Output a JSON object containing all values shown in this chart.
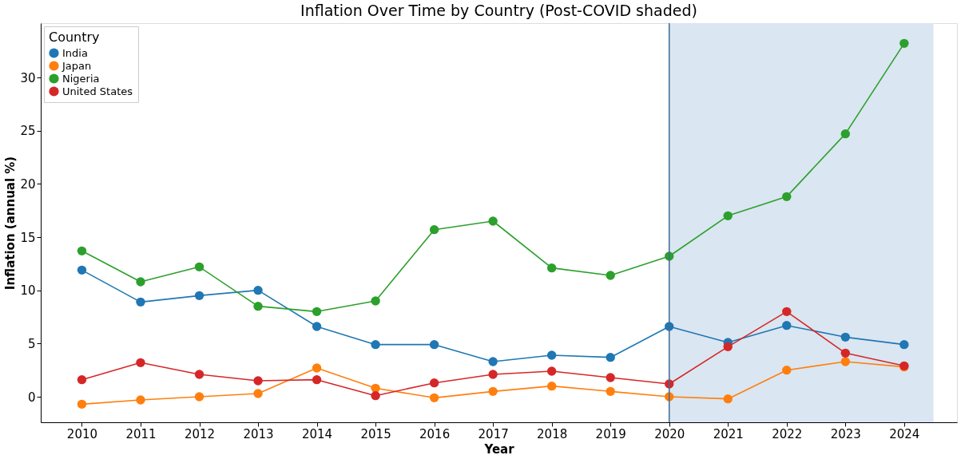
{
  "chart_data": {
    "type": "line",
    "title": "Inflation Over Time by Country (Post-COVID shaded)",
    "xlabel": "Year",
    "ylabel": "Inflation (annual %)",
    "legend_title": "Country",
    "x": [
      2010,
      2011,
      2012,
      2013,
      2014,
      2015,
      2016,
      2017,
      2018,
      2019,
      2020,
      2021,
      2022,
      2023,
      2024
    ],
    "series": [
      {
        "name": "India",
        "color": "#1f77b4",
        "values": [
          11.9,
          8.9,
          9.5,
          10.0,
          6.6,
          4.9,
          4.9,
          3.3,
          3.9,
          3.7,
          6.6,
          5.1,
          6.7,
          5.6,
          4.9
        ]
      },
      {
        "name": "Japan",
        "color": "#ff7f0e",
        "values": [
          -0.7,
          -0.3,
          0.0,
          0.3,
          2.7,
          0.8,
          -0.1,
          0.5,
          1.0,
          0.5,
          0.0,
          -0.2,
          2.5,
          3.3,
          2.8
        ]
      },
      {
        "name": "Nigeria",
        "color": "#2ca02c",
        "values": [
          13.7,
          10.8,
          12.2,
          8.5,
          8.0,
          9.0,
          15.7,
          16.5,
          12.1,
          11.4,
          13.2,
          17.0,
          18.8,
          24.7,
          33.2
        ]
      },
      {
        "name": "United States",
        "color": "#d62728",
        "values": [
          1.6,
          3.2,
          2.1,
          1.5,
          1.6,
          0.1,
          1.3,
          2.1,
          2.4,
          1.8,
          1.2,
          4.7,
          8.0,
          4.1,
          2.9
        ]
      }
    ],
    "xlim": [
      2009.3,
      2024.9
    ],
    "xticks": [
      2010,
      2011,
      2012,
      2013,
      2014,
      2015,
      2016,
      2017,
      2018,
      2019,
      2020,
      2021,
      2022,
      2023,
      2024
    ],
    "ylim": [
      -2.4,
      35.1
    ],
    "yticks": [
      0,
      5,
      10,
      15,
      20,
      25,
      30
    ],
    "bands": [
      {
        "axis": "x",
        "from": 2020,
        "to": 2024.5,
        "color": "#dae6f1"
      }
    ],
    "ref_lines": [
      {
        "axis": "x",
        "value": 2020,
        "color": "#3f6b95",
        "line_style": "solid"
      }
    ],
    "grid": false,
    "legend": "top left",
    "marker": "circle",
    "line_style": "solid"
  }
}
